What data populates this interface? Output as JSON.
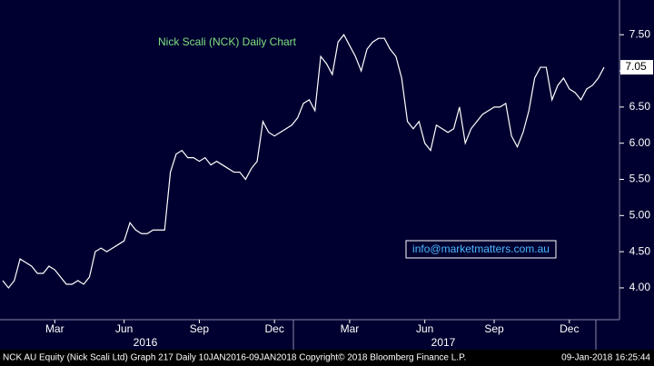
{
  "chart_data": {
    "type": "line",
    "annotation": "Nick Scali (NCK) Daily Chart",
    "contact": "info@marketmatters.com.au",
    "last_price": {
      "value": 7.05,
      "label": "7.05"
    },
    "footer_left": "NCK AU Equity (Nick Scali Ltd) Graph 217  Daily 10JAN2016-09JAN2018  Copyright© 2018 Bloomberg Finance L.P.",
    "footer_right": "09-Jan-2018 16:25:44",
    "year_labels": [
      "2016",
      "2017"
    ],
    "categories": [
      null,
      null,
      null,
      null,
      null,
      null,
      null,
      null,
      null,
      "Mar",
      null,
      null,
      null,
      null,
      null,
      null,
      null,
      null,
      null,
      null,
      null,
      "Jun",
      null,
      null,
      null,
      null,
      null,
      null,
      null,
      null,
      null,
      null,
      null,
      null,
      "Sep",
      null,
      null,
      null,
      null,
      null,
      null,
      null,
      null,
      null,
      null,
      null,
      null,
      "Dec",
      null,
      null,
      null,
      null,
      null,
      null,
      null,
      null,
      null,
      null,
      null,
      null,
      "Mar",
      null,
      null,
      null,
      null,
      null,
      null,
      null,
      null,
      null,
      null,
      null,
      null,
      "Jun",
      null,
      null,
      null,
      null,
      null,
      null,
      null,
      null,
      null,
      null,
      null,
      "Sep",
      null,
      null,
      null,
      null,
      null,
      null,
      null,
      null,
      null,
      null,
      null,
      null,
      "Dec",
      null,
      null,
      null,
      null,
      null,
      null
    ],
    "series": [
      {
        "name": "NCK AU Equity",
        "color": "#ffffff",
        "values": [
          4.1,
          4.0,
          4.1,
          4.4,
          4.35,
          4.3,
          4.2,
          4.2,
          4.3,
          4.25,
          4.15,
          4.05,
          4.05,
          4.1,
          4.05,
          4.15,
          4.5,
          4.55,
          4.5,
          4.55,
          4.6,
          4.65,
          4.9,
          4.8,
          4.75,
          4.75,
          4.8,
          4.8,
          4.8,
          5.6,
          5.85,
          5.9,
          5.8,
          5.8,
          5.75,
          5.8,
          5.7,
          5.75,
          5.7,
          5.65,
          5.6,
          5.6,
          5.5,
          5.65,
          5.75,
          6.3,
          6.15,
          6.1,
          6.15,
          6.2,
          6.25,
          6.35,
          6.55,
          6.6,
          6.45,
          7.2,
          7.1,
          6.95,
          7.4,
          7.5,
          7.35,
          7.2,
          7.0,
          7.3,
          7.4,
          7.45,
          7.45,
          7.3,
          7.2,
          6.9,
          6.3,
          6.2,
          6.3,
          6.0,
          5.9,
          6.25,
          6.2,
          6.15,
          6.2,
          6.5,
          6.0,
          6.2,
          6.3,
          6.4,
          6.45,
          6.5,
          6.5,
          6.55,
          6.1,
          5.95,
          6.15,
          6.45,
          6.9,
          7.05,
          7.05,
          6.6,
          6.8,
          6.9,
          6.75,
          6.7,
          6.6,
          6.75,
          6.8,
          6.9,
          7.05
        ]
      }
    ],
    "ylim": [
      3.56,
      7.98
    ],
    "yticks": [
      {
        "value": 4.0,
        "label": "4.00"
      },
      {
        "value": 4.5,
        "label": "4.50"
      },
      {
        "value": 5.0,
        "label": "5.00"
      },
      {
        "value": 5.5,
        "label": "5.50"
      },
      {
        "value": 6.0,
        "label": "6.00"
      },
      {
        "value": 6.5,
        "label": "6.50"
      },
      {
        "value": 7.0,
        "label": "7.00"
      },
      {
        "value": 7.5,
        "label": "7.50"
      }
    ],
    "grid": false
  }
}
